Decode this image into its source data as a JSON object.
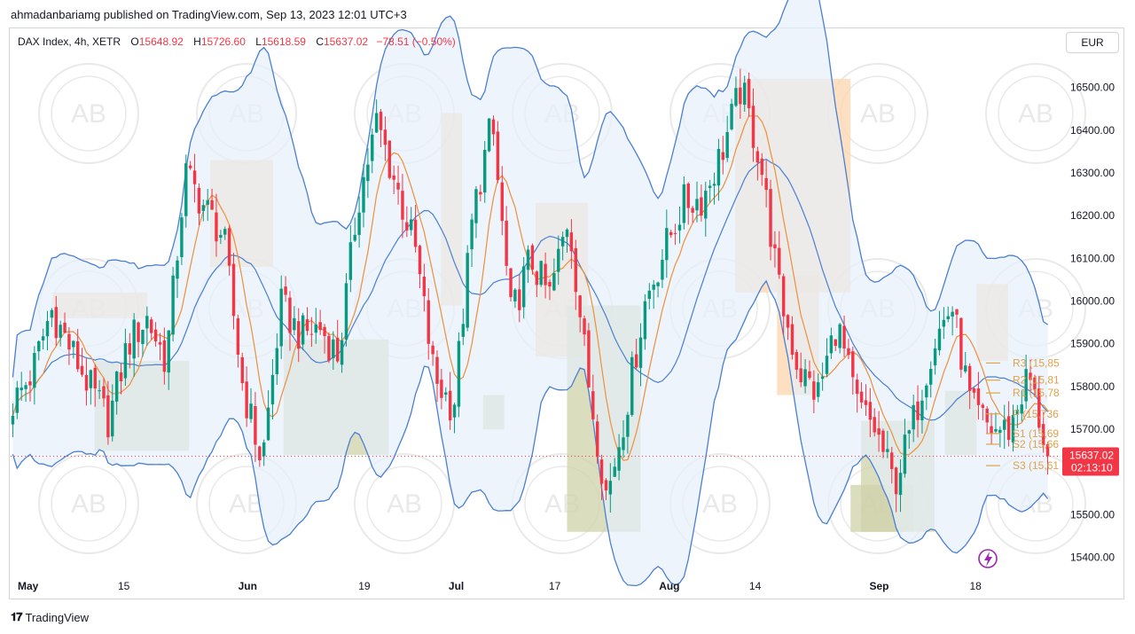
{
  "publisher_line": "ahmadanbariamg published on TradingView.com, Sep 13, 2023 12:01 UTC+3",
  "legend": {
    "symbol": "DAX Index, 4h, XETR",
    "o_label": "O",
    "o_value": "15648.92",
    "h_label": "H",
    "h_value": "15726.60",
    "l_label": "L",
    "l_value": "15618.59",
    "c_label": "C",
    "c_value": "15637.02",
    "change": "−78.51 (−0.50%)"
  },
  "currency": "EUR",
  "footer_brand": "TradingView",
  "watermark_text": "AB",
  "price_tag": {
    "price": "15637.02",
    "countdown": "02:13:10"
  },
  "pivot_labels": [
    "R3 (15,85",
    "R2 (15,81",
    "R1 (15,78",
    "P (15,736",
    "S1 (15,69",
    "S2 (15,66",
    "S3 (15,61"
  ],
  "colors": {
    "up": "#089981",
    "down": "#f23645",
    "bb": "#4a7fd1",
    "bb_fill": "#e6f0fb",
    "ma": "#ef8f3a",
    "supply": "#fbd6ac",
    "demand": "#cfd1a9",
    "pivot": "#e0a24a"
  },
  "chart_data": {
    "type": "candlestick",
    "instrument": "DAX Index, 4h, XETR",
    "ylim": [
      15360,
      16580
    ],
    "y_ticks": [
      15400,
      15500,
      15600,
      15700,
      15800,
      15900,
      16000,
      16100,
      16200,
      16300,
      16400,
      16500
    ],
    "y_tick_labels": [
      "15400.00",
      "15500.00",
      "15600.00",
      "15700.00",
      "15800.00",
      "15900.00",
      "16000.00",
      "16100.00",
      "16200.00",
      "16300.00",
      "16400.00",
      "16500.00"
    ],
    "x_tick_labels": [
      "May",
      "15",
      "Jun",
      "19",
      "Jul",
      "17",
      "Aug",
      "14",
      "Sep",
      "18"
    ],
    "last_price": 15637.02,
    "pivot_levels": [
      {
        "name": "R3",
        "value": 15855
      },
      {
        "name": "R2",
        "value": 15815
      },
      {
        "name": "R1",
        "value": 15785
      },
      {
        "name": "P",
        "value": 15736
      },
      {
        "name": "S1",
        "value": 15690
      },
      {
        "name": "S2",
        "value": 15665
      },
      {
        "name": "S3",
        "value": 15615
      }
    ],
    "close_path": [
      15760,
      15830,
      15980,
      15890,
      15800,
      15720,
      15900,
      15960,
      15860,
      16300,
      16220,
      16150,
      15800,
      15620,
      15990,
      15920,
      15940,
      15870,
      16230,
      16420,
      16270,
      16120,
      15820,
      15750,
      16200,
      16420,
      15960,
      16100,
      16010,
      16200,
      15820,
      15540,
      15750,
      16000,
      16120,
      16230,
      16240,
      16350,
      16500,
      16330,
      16020,
      15840,
      15780,
      15950,
      15760,
      15700,
      15570,
      15720,
      15900,
      15990,
      15750,
      15700,
      15700,
      15830,
      15640
    ],
    "supply_zones": [
      [
        15960,
        16020
      ],
      [
        16080,
        16330
      ],
      [
        15990,
        16440
      ],
      [
        15870,
        16230
      ],
      [
        16020,
        16520
      ],
      [
        15780,
        16060
      ],
      [
        15860,
        16040
      ]
    ],
    "demand_zones": [
      [
        15650,
        15860
      ],
      [
        15640,
        15910
      ],
      [
        15700,
        15780
      ],
      [
        15460,
        15990
      ],
      [
        15460,
        15570
      ],
      [
        15460,
        15720
      ],
      [
        15640,
        15790
      ]
    ]
  }
}
